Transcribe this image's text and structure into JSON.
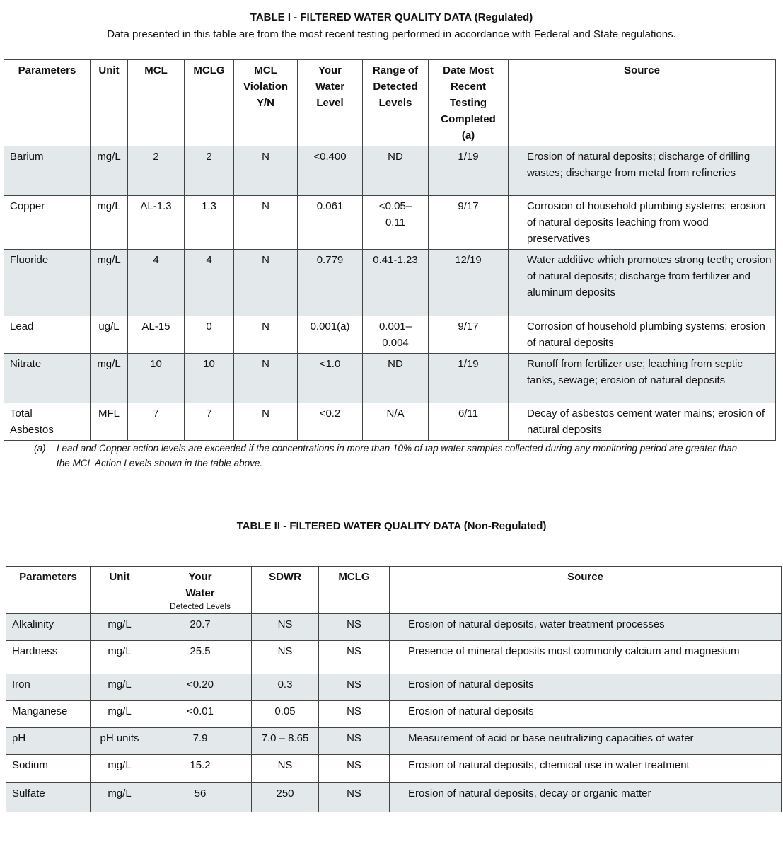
{
  "table1": {
    "title": "TABLE I - FILTERED WATER QUALITY DATA (Regulated)",
    "subtitle": "Data presented in this table are from the most recent testing performed in accordance with Federal and State regulations.",
    "headers": [
      "Parameters",
      "Unit",
      "MCL",
      "MCLG",
      "MCL\nViolation\nY/N",
      "Your\nWater\nLevel",
      "Range of\nDetected\nLevels",
      "Date Most\nRecent\nTesting\nCompleted\n(a)",
      "Source"
    ],
    "rows": [
      [
        "Barium",
        "mg/L",
        "2",
        "2",
        "N",
        "<0.400",
        "ND",
        "1/19",
        "Erosion of natural deposits; discharge of drilling wastes; discharge from metal from refineries"
      ],
      [
        "Copper",
        "mg/L",
        "AL-1.3",
        "1.3",
        "N",
        "0.061",
        "<0.05–\n0.11",
        "9/17",
        "Corrosion of household plumbing systems; erosion of natural deposits leaching from wood preservatives"
      ],
      [
        "Fluoride",
        "mg/L",
        "4",
        "4",
        "N",
        "0.779",
        "0.41-1.23",
        "12/19",
        "Water additive which promotes strong teeth; erosion of natural deposits; discharge from fertilizer and aluminum deposits"
      ],
      [
        "Lead",
        "ug/L",
        "AL-15",
        "0",
        "N",
        "0.001(a)",
        "0.001–\n0.004",
        "9/17",
        "Corrosion of household plumbing systems; erosion of natural deposits"
      ],
      [
        "Nitrate",
        "mg/L",
        "10",
        "10",
        "N",
        "<1.0",
        "ND",
        "1/19",
        "Runoff from fertilizer use; leaching from septic tanks, sewage;  erosion of natural deposits"
      ],
      [
        "Total\nAsbestos",
        "MFL",
        "7",
        "7",
        "N",
        "<0.2",
        "N/A",
        "6/11",
        "Decay of asbestos cement water mains; erosion of natural deposits"
      ]
    ],
    "footnote_marker": "(a)",
    "footnote": "Lead and Copper action levels are exceeded if the concentrations in more than 10% of tap water samples collected during any monitoring period are greater than the MCL Action Levels shown in the table above."
  },
  "table2": {
    "title": "TABLE II - FILTERED WATER QUALITY DATA (Non-Regulated)",
    "headers": [
      "Parameters",
      "Unit",
      "Your\nWater",
      "SDWR",
      "MCLG",
      "Source"
    ],
    "header_sub": "Detected Levels",
    "rows": [
      [
        "Alkalinity",
        "mg/L",
        "20.7",
        "NS",
        "NS",
        "Erosion of natural deposits,  water treatment processes"
      ],
      [
        "Hardness",
        "mg/L",
        "25.5",
        "NS",
        "NS",
        "Presence of mineral deposits most commonly calcium and magnesium"
      ],
      [
        "Iron",
        "mg/L",
        "<0.20",
        "0.3",
        "NS",
        "Erosion of natural deposits"
      ],
      [
        "Manganese",
        "mg/L",
        "<0.01",
        "0.05",
        "NS",
        "Erosion of natural deposits"
      ],
      [
        "pH",
        "pH units",
        "7.9",
        "7.0 – 8.65",
        "NS",
        "Measurement of acid or base neutralizing capacities of water"
      ],
      [
        "Sodium",
        "mg/L",
        "15.2",
        "NS",
        "NS",
        "Erosion of natural deposits, chemical use in water treatment"
      ],
      [
        "Sulfate",
        "mg/L",
        "56",
        "250",
        "NS",
        "Erosion of natural deposits, decay or organic matter"
      ]
    ]
  },
  "colors": {
    "row_shade": "#e3e8ea",
    "border": "#444444"
  }
}
